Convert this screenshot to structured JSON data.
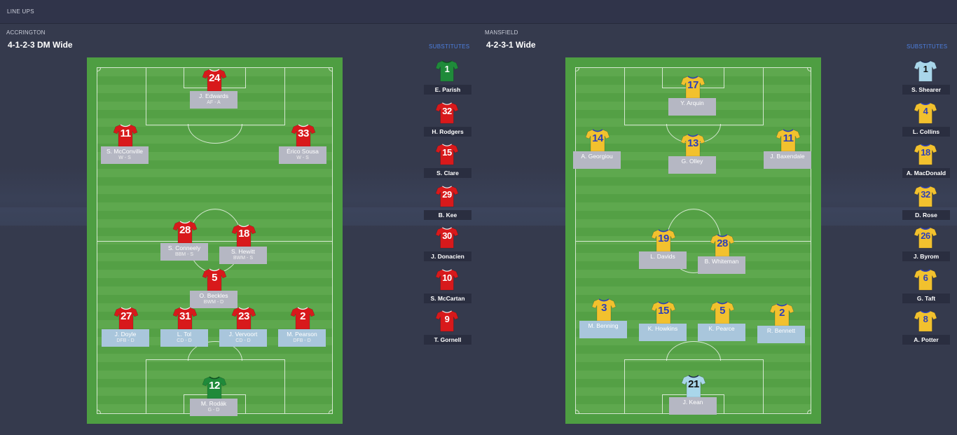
{
  "header": {
    "title": "LINE UPS"
  },
  "home": {
    "team": "ACCRINGTON",
    "formation": "4-1-2-3 DM Wide",
    "subs_label": "SUBSTITUTES",
    "players": [
      {
        "num": "24",
        "name": "J. Edwards",
        "role": "AF  -  A",
        "kit": "red"
      },
      {
        "num": "11",
        "name": "S. McConville",
        "role": "W  -  S",
        "kit": "red"
      },
      {
        "num": "33",
        "name": "Érico Sousa",
        "role": "W  -  S",
        "kit": "red"
      },
      {
        "num": "28",
        "name": "S. Conneely",
        "role": "BBM  -  S",
        "kit": "red"
      },
      {
        "num": "18",
        "name": "S. Hewitt",
        "role": "BWM  -  S",
        "kit": "red"
      },
      {
        "num": "5",
        "name": "O. Beckles",
        "role": "BWM  -  D",
        "kit": "red"
      },
      {
        "num": "27",
        "name": "J. Doyle",
        "role": "DFB  -  D",
        "kit": "red"
      },
      {
        "num": "31",
        "name": "L. Tol",
        "role": "CD  -  D",
        "kit": "red"
      },
      {
        "num": "23",
        "name": "J. Vervoort",
        "role": "CD  -  D",
        "kit": "red"
      },
      {
        "num": "2",
        "name": "M. Pearson",
        "role": "DFB  -  D",
        "kit": "red"
      },
      {
        "num": "12",
        "name": "M. Rodák",
        "role": "G  -  D",
        "kit": "green"
      }
    ],
    "subs": [
      {
        "num": "1",
        "name": "E. Parish",
        "kit": "green"
      },
      {
        "num": "32",
        "name": "H. Rodgers",
        "kit": "red"
      },
      {
        "num": "15",
        "name": "S. Clare",
        "kit": "red"
      },
      {
        "num": "29",
        "name": "B. Kee",
        "kit": "red"
      },
      {
        "num": "30",
        "name": "J. Donacien",
        "kit": "red"
      },
      {
        "num": "10",
        "name": "S. McCartan",
        "kit": "red"
      },
      {
        "num": "9",
        "name": "T. Gornell",
        "kit": "red"
      }
    ]
  },
  "away": {
    "team": "MANSFIELD",
    "formation": "4-2-3-1 Wide",
    "subs_label": "SUBSTITUTES",
    "players": [
      {
        "num": "17",
        "name": "Y. Arquin",
        "kit": "yellow"
      },
      {
        "num": "14",
        "name": "A. Georgiou",
        "kit": "yellow"
      },
      {
        "num": "13",
        "name": "G. Olley",
        "kit": "yellow"
      },
      {
        "num": "11",
        "name": "J. Baxendale",
        "kit": "yellow"
      },
      {
        "num": "19",
        "name": "L. Davids",
        "kit": "yellow"
      },
      {
        "num": "28",
        "name": "B. Whiteman",
        "kit": "yellow"
      },
      {
        "num": "3",
        "name": "M. Benning",
        "kit": "yellow"
      },
      {
        "num": "15",
        "name": "K. Howkins",
        "kit": "yellow"
      },
      {
        "num": "5",
        "name": "K. Pearce",
        "kit": "yellow"
      },
      {
        "num": "2",
        "name": "R. Bennett",
        "kit": "yellow"
      },
      {
        "num": "21",
        "name": "J. Kean",
        "kit": "lightblue"
      }
    ],
    "subs": [
      {
        "num": "1",
        "name": "S. Shearer",
        "kit": "lightblue"
      },
      {
        "num": "4",
        "name": "L. Collins",
        "kit": "yellow"
      },
      {
        "num": "18",
        "name": "A. MacDonald",
        "kit": "yellow"
      },
      {
        "num": "32",
        "name": "D. Rose",
        "kit": "yellow"
      },
      {
        "num": "26",
        "name": "J. Byrom",
        "kit": "yellow"
      },
      {
        "num": "6",
        "name": "G. Taft",
        "kit": "yellow"
      },
      {
        "num": "8",
        "name": "A. Potter",
        "kit": "yellow"
      }
    ]
  },
  "colors": {
    "red": "#d8191b",
    "green": "#1f8a3a",
    "yellow": "#f2c12e",
    "lightblue": "#a9d6ea",
    "accent": "#4d7fe0"
  }
}
